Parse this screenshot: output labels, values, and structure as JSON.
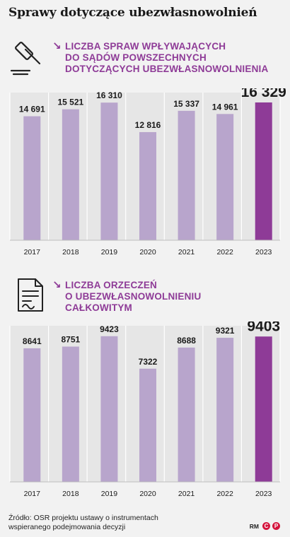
{
  "title": "Sprawy dotyczące ubezwłasnowolnień",
  "colors": {
    "bar": "#b8a5cc",
    "highlight": "#8e3b97",
    "accent": "#8e3b97",
    "grid": "#ffffff"
  },
  "sections": [
    {
      "icon": "gavel-icon",
      "arrow": "↘",
      "subtitle_lines": [
        "LICZBA SPRAW WPŁYWAJĄCYCH",
        "DO SĄDÓW POWSZECHNYCH",
        "DOTYCZĄCYCH UBEZWŁASNOWOLNIENIA"
      ]
    },
    {
      "icon": "document-icon",
      "arrow": "↘",
      "subtitle_lines": [
        "LICZBA ORZECZEŃ",
        "O UBEZWŁASNOWOLNIENIU",
        "CAŁKOWITYM"
      ]
    }
  ],
  "chart_data": [
    {
      "type": "bar",
      "categories": [
        "2017",
        "2018",
        "2019",
        "2020",
        "2021",
        "2022",
        "2023"
      ],
      "values": [
        14691,
        15521,
        16310,
        12816,
        15337,
        14961,
        16329
      ],
      "value_labels": [
        "14 691",
        "15 521",
        "16 310",
        "12 816",
        "15 337",
        "14 961",
        "16 329"
      ],
      "highlight_index": 6,
      "ylim": [
        0,
        17500
      ],
      "grid": true
    },
    {
      "type": "bar",
      "categories": [
        "2017",
        "2018",
        "2019",
        "2020",
        "2021",
        "2022",
        "2023"
      ],
      "values": [
        8641,
        8751,
        9423,
        7322,
        8688,
        9321,
        9403
      ],
      "value_labels": [
        "8641",
        "8751",
        "9423",
        "7322",
        "8688",
        "9321",
        "9403"
      ],
      "highlight_index": 6,
      "ylim": [
        0,
        10100
      ],
      "grid": true
    }
  ],
  "footer": {
    "source_lines": [
      "Źródło: OSR projektu ustawy o instrumentach",
      "wspieranego podejmowania decyzji"
    ],
    "brand_text": "RM"
  }
}
